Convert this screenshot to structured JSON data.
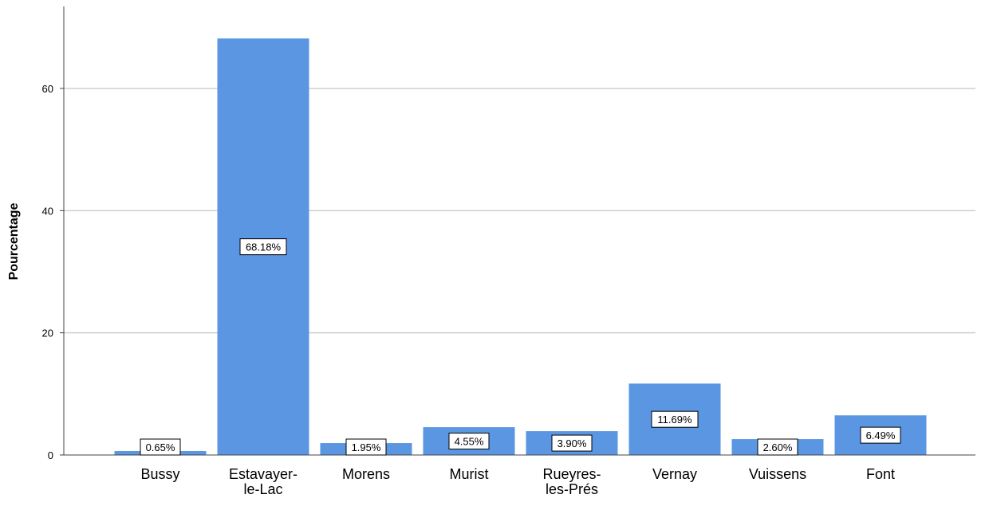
{
  "chart_data": {
    "type": "bar",
    "title": "",
    "xlabel": "",
    "ylabel": "Pourcentage",
    "categories": [
      [
        "Bussy"
      ],
      [
        "Estavayer-",
        "le-Lac"
      ],
      [
        "Morens"
      ],
      [
        "Murist"
      ],
      [
        "Rueyres-",
        "les-Prés"
      ],
      [
        "Vernay"
      ],
      [
        "Vuissens"
      ],
      [
        "Font"
      ]
    ],
    "values": [
      0.65,
      68.18,
      1.95,
      4.55,
      3.9,
      11.69,
      2.6,
      6.49
    ],
    "data_labels": [
      "0.65%",
      "68.18%",
      "1.95%",
      "4.55%",
      "3.90%",
      "11.69%",
      "2.60%",
      "6.49%"
    ],
    "yticks": [
      0,
      20,
      40,
      60
    ],
    "ylim": [
      0,
      73
    ],
    "grid": true,
    "colors": {
      "bar": "#5b96e3",
      "grid": "#cfcfcf",
      "axis": "#444444"
    }
  }
}
